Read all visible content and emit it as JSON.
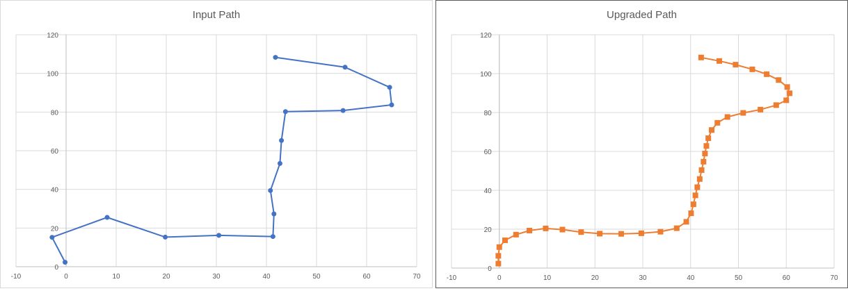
{
  "chart_data": [
    {
      "type": "scatter",
      "title": "Input Path",
      "xlim": [
        -10,
        70
      ],
      "ylim": [
        0,
        120
      ],
      "x_ticks": [
        -10,
        0,
        10,
        20,
        30,
        40,
        50,
        60,
        70
      ],
      "y_ticks": [
        0,
        20,
        40,
        60,
        80,
        100,
        120
      ],
      "grid": true,
      "marker": "circle",
      "color": "#4472c4",
      "series": [
        {
          "points": [
            [
              -0.2,
              2.3
            ],
            [
              -2.8,
              15.2
            ],
            [
              8.2,
              25.5
            ],
            [
              19.8,
              15.3
            ],
            [
              30.5,
              16.2
            ],
            [
              41.3,
              15.6
            ],
            [
              41.5,
              27.3
            ],
            [
              40.8,
              39.4
            ],
            [
              42.7,
              53.4
            ],
            [
              43.0,
              65.3
            ],
            [
              43.8,
              80.2
            ],
            [
              55.3,
              80.8
            ],
            [
              65.0,
              83.7
            ],
            [
              64.6,
              92.8
            ],
            [
              55.7,
              103.2
            ],
            [
              41.8,
              108.3
            ]
          ]
        }
      ]
    },
    {
      "type": "scatter",
      "title": "Upgraded Path",
      "xlim": [
        -10,
        70
      ],
      "ylim": [
        0,
        120
      ],
      "x_ticks": [
        -10,
        0,
        10,
        20,
        30,
        40,
        50,
        60,
        70
      ],
      "y_ticks": [
        0,
        20,
        40,
        60,
        80,
        100,
        120
      ],
      "grid": true,
      "marker": "square",
      "color": "#ed7d31",
      "series": [
        {
          "points": [
            [
              -0.2,
              2.3
            ],
            [
              -0.2,
              6.3
            ],
            [
              0.0,
              10.8
            ],
            [
              1.2,
              14.3
            ],
            [
              3.5,
              17.2
            ],
            [
              6.3,
              19.3
            ],
            [
              9.7,
              20.4
            ],
            [
              13.2,
              19.8
            ],
            [
              17.1,
              18.5
            ],
            [
              21.0,
              17.7
            ],
            [
              25.5,
              17.6
            ],
            [
              29.7,
              17.9
            ],
            [
              33.7,
              18.7
            ],
            [
              37.1,
              20.5
            ],
            [
              39.1,
              23.8
            ],
            [
              40.1,
              28.2
            ],
            [
              40.6,
              32.8
            ],
            [
              41.0,
              37.4
            ],
            [
              41.4,
              41.6
            ],
            [
              41.9,
              45.8
            ],
            [
              42.3,
              50.4
            ],
            [
              42.7,
              54.7
            ],
            [
              43.0,
              58.9
            ],
            [
              43.3,
              62.8
            ],
            [
              43.7,
              66.8
            ],
            [
              44.4,
              71.0
            ],
            [
              45.6,
              74.7
            ],
            [
              47.7,
              77.7
            ],
            [
              51.0,
              79.8
            ],
            [
              54.6,
              81.5
            ],
            [
              57.9,
              83.8
            ],
            [
              60.0,
              86.3
            ],
            [
              60.7,
              89.9
            ],
            [
              60.2,
              93.1
            ],
            [
              58.4,
              96.7
            ],
            [
              55.9,
              99.7
            ],
            [
              52.9,
              102.2
            ],
            [
              49.4,
              104.6
            ],
            [
              46.0,
              106.5
            ],
            [
              42.2,
              108.3
            ]
          ]
        }
      ]
    }
  ]
}
